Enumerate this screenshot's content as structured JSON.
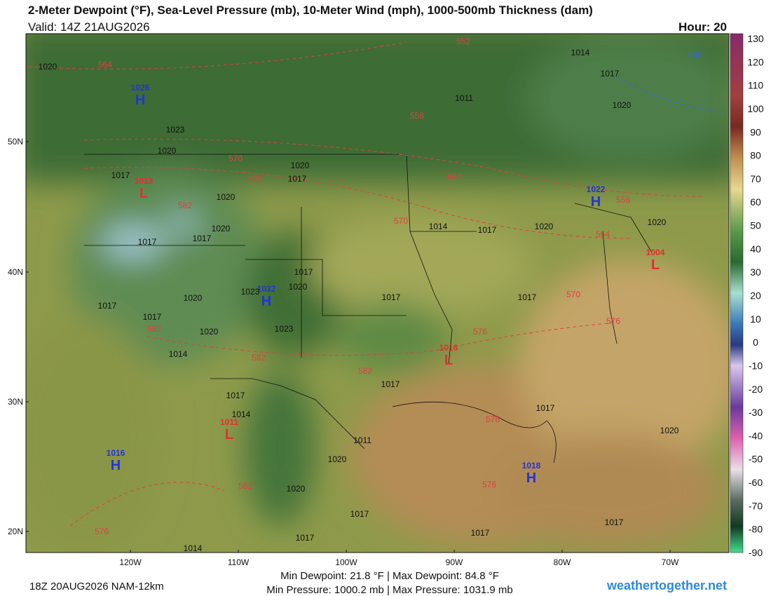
{
  "header": {
    "title": "2-Meter Dewpoint (°F), Sea-Level Pressure (mb), 10-Meter Wind (mph), 1000-500mb Thickness (dam)",
    "valid": "Valid: 14Z 21AUG2026",
    "hour": "Hour: 20"
  },
  "colorbar": {
    "labels": [
      130,
      120,
      110,
      100,
      90,
      80,
      70,
      60,
      50,
      40,
      30,
      20,
      10,
      0,
      -10,
      -20,
      -30,
      -40,
      -50,
      -60,
      -70,
      -80,
      -90
    ]
  },
  "axes": {
    "lat_labels": [
      "50N",
      "40N",
      "30N",
      "20N"
    ],
    "lon_labels": [
      "120W",
      "110W",
      "100W",
      "90W",
      "80W",
      "70W"
    ]
  },
  "pressure_centers": [
    {
      "symbol": "H",
      "pressure": "1026"
    },
    {
      "symbol": "L",
      "pressure": "1013"
    },
    {
      "symbol": "H",
      "pressure": "1032"
    },
    {
      "symbol": "H",
      "pressure": "1022"
    },
    {
      "symbol": "L",
      "pressure": "1004"
    },
    {
      "symbol": "L",
      "pressure": "1016"
    },
    {
      "symbol": "L",
      "pressure": "1011"
    },
    {
      "symbol": "H",
      "pressure": "1016"
    },
    {
      "symbol": "H",
      "pressure": "1018"
    }
  ],
  "isobar_labels": [
    "1020",
    "1014",
    "1017",
    "1011",
    "1020",
    "1023",
    "1020",
    "1020",
    "1017",
    "1017",
    "1020",
    "1020",
    "1017",
    "1017",
    "1014",
    "1017",
    "1020",
    "1020",
    "1017",
    "1020",
    "1023",
    "1017",
    "1017",
    "1020",
    "1017",
    "1017",
    "1020",
    "1023",
    "1014",
    "1017",
    "1017",
    "1014",
    "1017",
    "1020",
    "1011",
    "1020",
    "1020",
    "1017",
    "1017",
    "1017",
    "1017",
    "1014"
  ],
  "thickness_labels": [
    "564",
    "552",
    "540",
    "558",
    "570",
    "576",
    "564",
    "558",
    "582",
    "570",
    "564",
    "570",
    "576",
    "576",
    "582",
    "582",
    "582",
    "576",
    "576",
    "582",
    "576"
  ],
  "footer": {
    "run": "18Z 20AUG2026 NAM-12km",
    "dewpoint_range": "Min Dewpoint:  21.8 °F | Max Dewpoint:  84.8 °F",
    "pressure_range": "Min Pressure: 1000.2 mb | Max Pressure: 1031.9 mb",
    "site": "weathertogether.net"
  }
}
